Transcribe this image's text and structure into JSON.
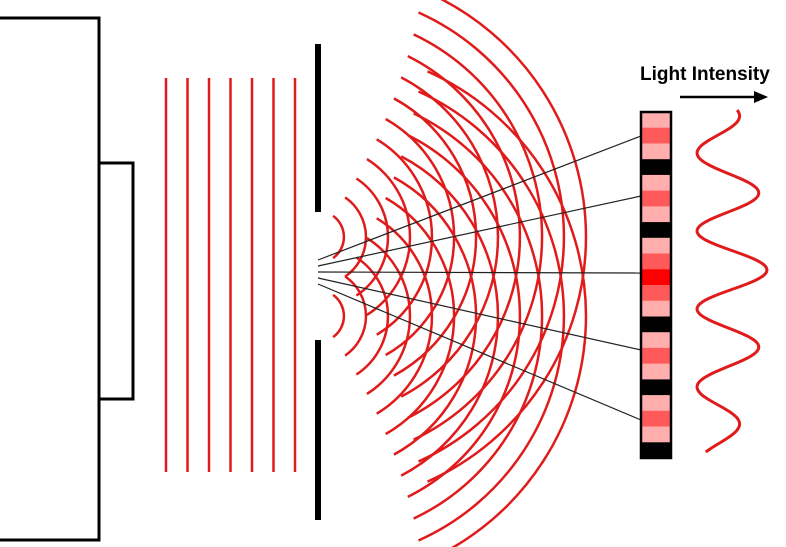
{
  "labels": {
    "intensity": "Light Intensity"
  },
  "colors": {
    "wave": "#e01b1b",
    "barrier": "#000000",
    "ray": "#222222",
    "screen_black": "#000000",
    "screen_bright": "#ff0000",
    "screen_mid": "#ff5a5a",
    "screen_light": "#ffadad"
  },
  "elements": {
    "plane_wave_count": 7,
    "slit_count": 2,
    "ray_count": 5,
    "screen_band_pattern": [
      "light",
      "mid",
      "light",
      "dark",
      "light",
      "mid",
      "light",
      "dark",
      "light",
      "mid",
      "bright",
      "mid",
      "light",
      "dark",
      "light",
      "mid",
      "light",
      "dark",
      "light",
      "mid",
      "light",
      "dark"
    ]
  }
}
